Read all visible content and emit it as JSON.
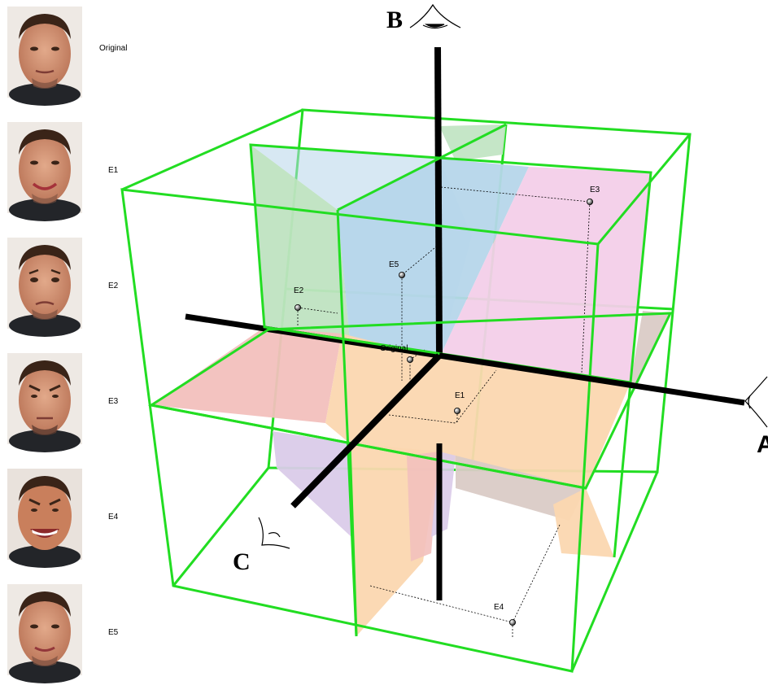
{
  "faces": [
    {
      "label": "Original",
      "expression": "neutral"
    },
    {
      "label": "E1",
      "expression": "smile"
    },
    {
      "label": "E2",
      "expression": "sad"
    },
    {
      "label": "E3",
      "expression": "frown"
    },
    {
      "label": "E4",
      "expression": "grin"
    },
    {
      "label": "E5",
      "expression": "slight-smile"
    }
  ],
  "axes": {
    "a": "A",
    "b": "B",
    "c": "C"
  },
  "points": [
    {
      "label": "Original"
    },
    {
      "label": "E1"
    },
    {
      "label": "E2"
    },
    {
      "label": "E3"
    },
    {
      "label": "E4"
    },
    {
      "label": "E5"
    }
  ],
  "colors": {
    "cube_edge": "#22dd22",
    "axis": "#000000",
    "region_green": "#bfe3c1",
    "region_blue": "#b6d6ea",
    "region_pink": "#f3cfe9",
    "region_orange": "#fbd7b0",
    "region_red": "#f2c0bd",
    "region_lavender": "#dacbe9",
    "region_taupe": "#dacbc6"
  },
  "icons": [
    "eye-icon-b",
    "eye-icon-a",
    "eye-icon-c"
  ]
}
